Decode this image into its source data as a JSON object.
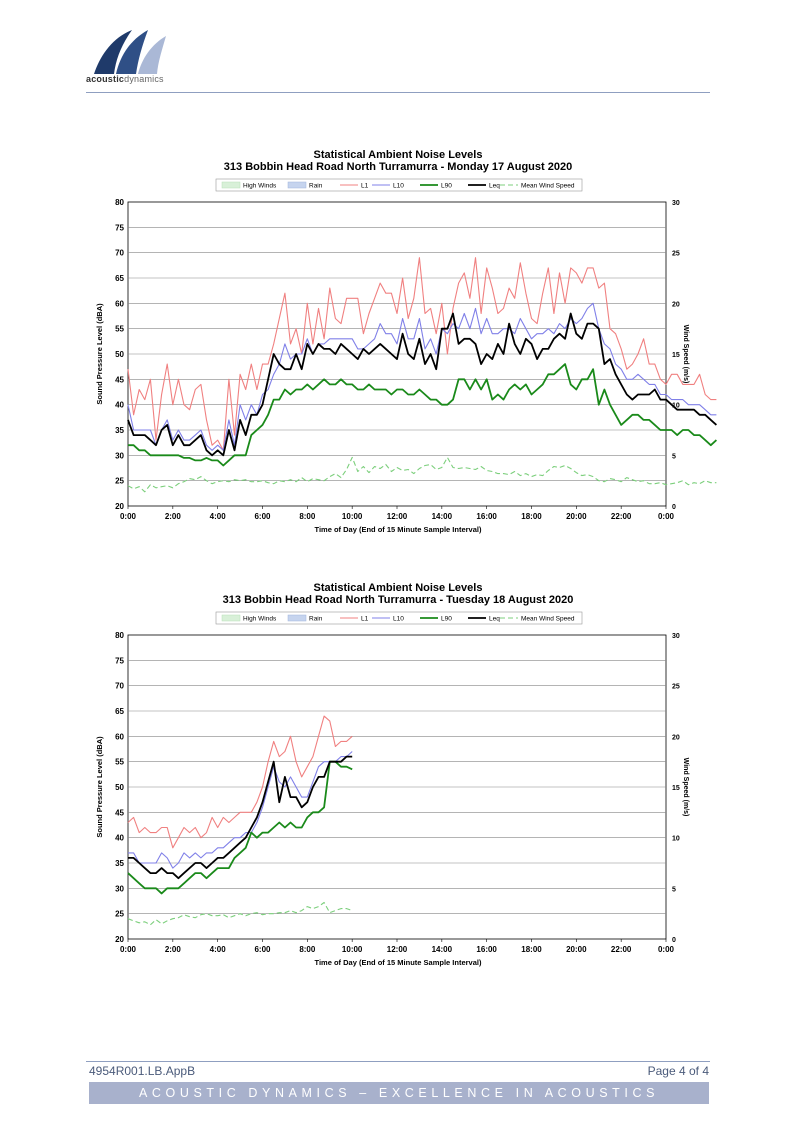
{
  "header": {
    "logo_text_a": "acoustic",
    "logo_text_b": "dynamics"
  },
  "footer": {
    "doc_code": "4954R001.LB.AppB",
    "page": "Page 4 of 4",
    "banner": "ACOUSTIC DYNAMICS – EXCELLENCE IN ACOUSTICS"
  },
  "colors": {
    "L1": "#f08080",
    "L10": "#8080e8",
    "L90": "#1a8a1a",
    "Leq": "#000000",
    "wind": "#7ccf7c",
    "rain": "#c6d4ee",
    "high_winds": "#d8f0d8",
    "banner": "#a8b1cc"
  },
  "chart_data": [
    {
      "type": "line",
      "title": "Statistical Ambient Noise Levels",
      "subtitle": "313 Bobbin Head Road North Turramurra - Monday 17 August 2020",
      "xlabel": "Time of Day (End of 15 Minute  Sample Interval)",
      "ylabel": "Sound Pressure Level (dBA)",
      "y2label": "Wind Speed (m/s)",
      "ylim": [
        20,
        80
      ],
      "y2lim": [
        0,
        30
      ],
      "xlim": [
        0,
        24
      ],
      "xticks": [
        "0:00",
        "2:00",
        "4:00",
        "6:00",
        "8:00",
        "10:00",
        "12:00",
        "14:00",
        "16:00",
        "18:00",
        "20:00",
        "22:00",
        "0:00"
      ],
      "yticks": [
        20,
        25,
        30,
        35,
        40,
        45,
        50,
        55,
        60,
        65,
        70,
        75,
        80
      ],
      "y2ticks": [
        0,
        5,
        10,
        15,
        20,
        25,
        30
      ],
      "legend": [
        "High Winds",
        "Rain",
        "L1",
        "L10",
        "L90",
        "Leq",
        "Mean Wind Speed"
      ],
      "grid": true,
      "x_step_hours": 0.25,
      "series": [
        {
          "name": "L1",
          "values": [
            47,
            38,
            43,
            41,
            45,
            33,
            42,
            48,
            40,
            45,
            40,
            39,
            43,
            44,
            37,
            32,
            33,
            31,
            45,
            34,
            46,
            43,
            48,
            43,
            48,
            48,
            52,
            57,
            62,
            52,
            55,
            50,
            60,
            52,
            59,
            53,
            63,
            57,
            56,
            61,
            61,
            61,
            54,
            58,
            61,
            64,
            62,
            62,
            58,
            65,
            57,
            61,
            69,
            58,
            59,
            54,
            60,
            50,
            59,
            64,
            66,
            61,
            69,
            58,
            67,
            63,
            58,
            59,
            63,
            61,
            68,
            62,
            57,
            56,
            62,
            67,
            58,
            66,
            60,
            67,
            66,
            64,
            67,
            67,
            63,
            64,
            55,
            54,
            51,
            47,
            48,
            50,
            53,
            48,
            48,
            45,
            44,
            46,
            46,
            44,
            44,
            44,
            46,
            42,
            41,
            41
          ]
        },
        {
          "name": "L10",
          "values": [
            40,
            35,
            35,
            35,
            35,
            32,
            35,
            37,
            33,
            35,
            33,
            33,
            34,
            35,
            32,
            31,
            32,
            31,
            37,
            32,
            40,
            37,
            40,
            38,
            42,
            43,
            46,
            48,
            52,
            49,
            50,
            50,
            53,
            50,
            52,
            52,
            53,
            53,
            53,
            53,
            53,
            51,
            51,
            52,
            53,
            56,
            54,
            54,
            52,
            57,
            53,
            53,
            57,
            51,
            53,
            50,
            55,
            54,
            56,
            55,
            58,
            55,
            59,
            54,
            57,
            54,
            54,
            55,
            55,
            54,
            57,
            55,
            53,
            54,
            54,
            55,
            54,
            56,
            55,
            57,
            56,
            57,
            59,
            60,
            55,
            52,
            51,
            48,
            47,
            45,
            45,
            46,
            45,
            44,
            44,
            42,
            42,
            41,
            41,
            41,
            40,
            40,
            40,
            39,
            38,
            38
          ]
        },
        {
          "name": "L90",
          "values": [
            32,
            32,
            31,
            31,
            30,
            30,
            30,
            30,
            30,
            30,
            29.5,
            29.5,
            29,
            29,
            29.5,
            29,
            29,
            28,
            29,
            30,
            30,
            30,
            34,
            35,
            36,
            38,
            41,
            41,
            43,
            42,
            43,
            43,
            44,
            43,
            44,
            45,
            44,
            44,
            45,
            44,
            44,
            43,
            43,
            44,
            43,
            43,
            43,
            42,
            43,
            43,
            42,
            42,
            43,
            42,
            41,
            41,
            40,
            40,
            41,
            45,
            45,
            43,
            45,
            43,
            45,
            41,
            42,
            41,
            43,
            44,
            43,
            44,
            42,
            43,
            44,
            46,
            46,
            47,
            48,
            44,
            43,
            45,
            45,
            47,
            40,
            43,
            40,
            38,
            36,
            37,
            38,
            38,
            37,
            37,
            36,
            35,
            35,
            35,
            34,
            35,
            35,
            34,
            34,
            33,
            32,
            33
          ]
        },
        {
          "name": "Leq",
          "values": [
            37,
            34,
            34,
            34,
            33,
            32,
            35,
            36,
            32,
            34,
            32,
            32,
            33,
            34,
            31,
            30,
            31,
            30,
            35,
            31,
            37,
            34,
            38,
            38,
            40,
            45,
            50,
            48,
            47,
            47,
            50,
            47,
            52,
            50,
            52,
            51,
            51,
            50,
            52,
            51,
            50,
            49,
            51,
            50,
            51,
            52,
            51,
            50,
            49,
            54,
            50,
            49,
            53,
            48,
            50,
            47,
            55,
            55,
            58,
            52,
            53,
            53,
            52,
            48,
            50,
            49,
            52,
            50,
            56,
            52,
            50,
            53,
            52,
            49,
            51,
            51,
            53,
            54,
            53,
            58,
            54,
            53,
            56,
            56,
            55,
            48,
            49,
            46,
            44,
            42,
            41,
            42,
            42,
            42,
            43,
            41,
            41,
            40,
            39,
            39,
            39,
            39,
            38,
            38,
            37,
            36
          ]
        },
        {
          "name": "Mean Wind Speed",
          "axis": "y2",
          "values": [
            2,
            1.7,
            1.9,
            1.4,
            2.1,
            1.8,
            1.9,
            2.0,
            1.8,
            2.2,
            2.4,
            2.7,
            2.6,
            2.9,
            2.5,
            2.2,
            2.4,
            2.5,
            2.4,
            2.6,
            2.5,
            2.6,
            2.4,
            2.4,
            2.5,
            2.3,
            2.2,
            2.5,
            2.4,
            2.6,
            2.4,
            2.8,
            2.4,
            2.7,
            2.6,
            2.5,
            2.9,
            3.2,
            2.8,
            3.6,
            4.8,
            3.4,
            3.9,
            3.3,
            3.9,
            3.7,
            4.1,
            3.4,
            3.8,
            3.5,
            3.6,
            3.2,
            3.7,
            4.0,
            4.1,
            3.6,
            3.8,
            4.8,
            3.8,
            3.7,
            3.8,
            3.7,
            3.6,
            3.9,
            3.5,
            3.4,
            3.2,
            3.2,
            3.1,
            3.4,
            3.0,
            3.2,
            2.9,
            3.1,
            3.0,
            3.5,
            3.9,
            3.8,
            4.0,
            3.7,
            3.3,
            3.0,
            3.1,
            2.9,
            2.5,
            2.4,
            2.7,
            2.6,
            2.4,
            2.8,
            2.6,
            2.4,
            2.5,
            2.2,
            2.2,
            2.3,
            2.1,
            2.2,
            2.3,
            2.5,
            2.1,
            2.3,
            2.2,
            2.5,
            2.3,
            2.3
          ]
        }
      ]
    },
    {
      "type": "line",
      "title": "Statistical Ambient Noise Levels",
      "subtitle": "313 Bobbin Head Road North Turramurra - Tuesday 18 August 2020",
      "xlabel": "Time of Day (End of 15 Minute  Sample Interval)",
      "ylabel": "Sound Pressure Level (dBA)",
      "y2label": "Wind Speed (m/s)",
      "ylim": [
        20,
        80
      ],
      "y2lim": [
        0,
        30
      ],
      "xlim": [
        0,
        24
      ],
      "xticks": [
        "0:00",
        "2:00",
        "4:00",
        "6:00",
        "8:00",
        "10:00",
        "12:00",
        "14:00",
        "16:00",
        "18:00",
        "20:00",
        "22:00",
        "0:00"
      ],
      "yticks": [
        20,
        25,
        30,
        35,
        40,
        45,
        50,
        55,
        60,
        65,
        70,
        75,
        80
      ],
      "y2ticks": [
        0,
        5,
        10,
        15,
        20,
        25,
        30
      ],
      "legend": [
        "High Winds",
        "Rain",
        "L1",
        "L10",
        "L90",
        "Leq",
        "Mean Wind Speed"
      ],
      "grid": true,
      "x_step_hours": 0.25,
      "series": [
        {
          "name": "L1",
          "values": [
            43,
            44,
            41,
            42,
            41,
            41,
            42,
            42,
            38,
            40,
            42,
            41,
            42,
            40,
            41,
            44,
            42,
            44,
            43,
            44,
            45,
            45,
            45,
            47,
            50,
            55,
            59,
            56,
            57,
            60,
            55,
            52,
            54,
            56,
            60,
            64,
            63,
            58,
            59,
            59,
            60
          ]
        },
        {
          "name": "L10",
          "values": [
            37,
            37,
            35,
            35,
            35,
            35,
            37,
            36,
            34,
            35,
            37,
            36,
            37,
            36,
            37,
            37,
            38,
            38,
            39,
            40,
            40,
            41,
            41,
            43,
            46,
            50,
            54,
            51,
            50,
            52,
            50,
            48,
            48,
            51,
            54,
            55,
            55,
            55,
            56,
            56,
            57
          ]
        },
        {
          "name": "L90",
          "values": [
            33,
            32,
            31,
            30,
            30,
            30,
            29,
            30,
            30,
            30,
            31,
            32,
            33,
            33,
            32,
            33,
            34,
            34,
            34,
            36,
            37,
            38,
            41,
            40,
            41,
            41,
            42,
            43,
            42,
            43,
            42,
            42,
            44,
            45,
            45,
            46,
            55,
            55,
            54,
            54,
            53.5
          ]
        },
        {
          "name": "Leq",
          "values": [
            36,
            36,
            35,
            34,
            33,
            33,
            34,
            33,
            33,
            32,
            33,
            34,
            35,
            35,
            34,
            35,
            36,
            36,
            37,
            38,
            39,
            40,
            42,
            44,
            47,
            51,
            55,
            47,
            52,
            48,
            48,
            46,
            47,
            50,
            52,
            52,
            55,
            55,
            55,
            56,
            56
          ]
        },
        {
          "name": "Mean Wind Speed",
          "axis": "y2",
          "values": [
            2,
            1.8,
            1.6,
            1.7,
            1.4,
            1.9,
            1.5,
            1.8,
            2.0,
            2.1,
            2.4,
            2.2,
            2.1,
            2.4,
            2.5,
            2.3,
            2.3,
            2.4,
            2.1,
            2.3,
            2.5,
            2.3,
            2.5,
            2.6,
            2.4,
            2.5,
            2.5,
            2.6,
            2.6,
            2.8,
            2.6,
            2.8,
            3.2,
            3.0,
            3.2,
            3.6,
            2.6,
            2.8,
            3.0,
            3.0,
            2.8
          ]
        }
      ]
    }
  ]
}
